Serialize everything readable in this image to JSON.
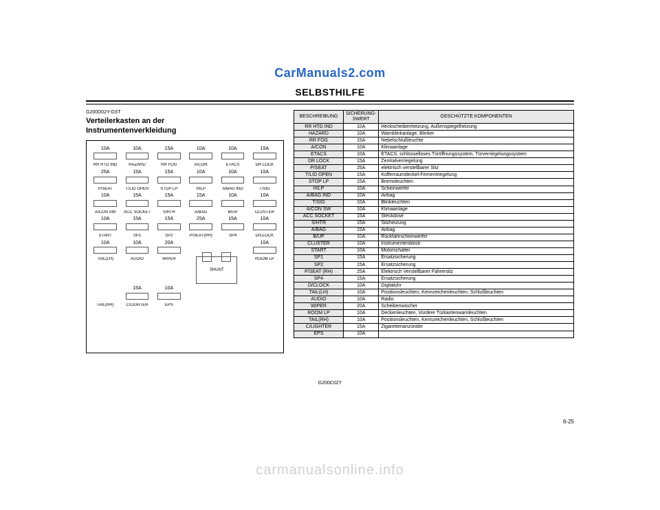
{
  "watermark_top": "CarManuals2.com",
  "watermark_bottom": "carmanualsonline.info",
  "page_title": "SELBSTHILFE",
  "left_ref": "G200D02Y-GST",
  "left_heading_1": "Verteilerkasten an der",
  "left_heading_2": "Instrumentenverkleidung",
  "footer_ref": "G200C02Y",
  "page_num": "6-25",
  "diagram": {
    "rows": [
      [
        {
          "a": "10A",
          "l": ""
        },
        {
          "a": "10A",
          "l": ""
        },
        {
          "a": "15A",
          "l": ""
        },
        {
          "a": "10A",
          "l": ""
        },
        {
          "a": "10A",
          "l": ""
        },
        {
          "a": "15A",
          "l": ""
        }
      ],
      [
        {
          "a": "",
          "l": "RR HTD IND"
        },
        {
          "a": "",
          "l": "HAZARD"
        },
        {
          "a": "",
          "l": "RR FOG"
        },
        {
          "a": "",
          "l": "A/CON"
        },
        {
          "a": "",
          "l": "ETACS"
        },
        {
          "a": "",
          "l": "DR LOCK"
        }
      ],
      [
        {
          "a": "25A",
          "l": ""
        },
        {
          "a": "15A",
          "l": ""
        },
        {
          "a": "15A",
          "l": ""
        },
        {
          "a": "10A",
          "l": ""
        },
        {
          "a": "10A",
          "l": ""
        },
        {
          "a": "10A",
          "l": ""
        }
      ],
      [
        {
          "a": "",
          "l": "P/SEAT"
        },
        {
          "a": "",
          "l": "T/LID OPEN"
        },
        {
          "a": "",
          "l": "STOP LP"
        },
        {
          "a": "",
          "l": "H/LP"
        },
        {
          "a": "",
          "l": "A/BAG IND"
        },
        {
          "a": "",
          "l": "T/SIG"
        }
      ],
      [
        {
          "a": "10A",
          "l": ""
        },
        {
          "a": "15A",
          "l": ""
        },
        {
          "a": "15A",
          "l": ""
        },
        {
          "a": "15A",
          "l": ""
        },
        {
          "a": "10A",
          "l": ""
        },
        {
          "a": "10A",
          "l": ""
        }
      ],
      [
        {
          "a": "",
          "l": "A/CON SW"
        },
        {
          "a": "",
          "l": "ACC SOCKET"
        },
        {
          "a": "",
          "l": "S/HTR"
        },
        {
          "a": "",
          "l": "A/BAG"
        },
        {
          "a": "",
          "l": "B/UP"
        },
        {
          "a": "",
          "l": "CLUSTER"
        }
      ],
      [
        {
          "a": "10A",
          "l": ""
        },
        {
          "a": "15A",
          "l": ""
        },
        {
          "a": "15A",
          "l": ""
        },
        {
          "a": "25A",
          "l": ""
        },
        {
          "a": "15A",
          "l": ""
        },
        {
          "a": "10A",
          "l": ""
        }
      ],
      [
        {
          "a": "",
          "l": "START"
        },
        {
          "a": "",
          "l": "SP1"
        },
        {
          "a": "",
          "l": "SP2"
        },
        {
          "a": "",
          "l": "P/SEAT(RH)"
        },
        {
          "a": "",
          "l": "SP4"
        },
        {
          "a": "",
          "l": "D/CLOCK"
        }
      ],
      [
        {
          "a": "10A",
          "l": ""
        },
        {
          "a": "10A",
          "l": ""
        },
        {
          "a": "20A",
          "l": ""
        },
        {
          "a": "",
          "l": ""
        },
        {
          "a": "",
          "l": ""
        },
        {
          "a": "10A",
          "l": ""
        }
      ],
      [
        {
          "a": "",
          "l": "TAIL(LH)"
        },
        {
          "a": "",
          "l": "AUDIO"
        },
        {
          "a": "",
          "l": "WIPER"
        },
        {
          "shunt": true
        },
        {
          "a": "",
          "l": "ROOM LP"
        }
      ],
      [
        {
          "a": "",
          "l": ""
        },
        {
          "a": "15A",
          "l": ""
        },
        {
          "a": "10A",
          "l": ""
        },
        {
          "a": "",
          "l": ""
        },
        {
          "a": "",
          "l": ""
        },
        {
          "a": "",
          "l": ""
        }
      ],
      [
        {
          "a": "",
          "l": "TAIL(RH)"
        },
        {
          "a": "",
          "l": "C/LIGHTER"
        },
        {
          "a": "",
          "l": "EPS"
        },
        {
          "a": "",
          "l": ""
        },
        {
          "a": "",
          "l": ""
        },
        {
          "a": "",
          "l": ""
        }
      ]
    ],
    "shunt_label": "SHUNT"
  },
  "table": {
    "headers": [
      "BESCHREIBUNG",
      "SICHERUNG-\nSWERT",
      "GESCHÜTZTE KOMPONENTEN"
    ],
    "rows": [
      [
        "RR HTD IND",
        "10A",
        "Heckscheibenheizung, Außenspiegelheizung"
      ],
      [
        "HAZARD",
        "10A",
        "Warnblinkanlage, Blinker"
      ],
      [
        "RR FOG",
        "15A",
        "Nebelschlußleuchte"
      ],
      [
        "A/CON",
        "10A",
        "Klimaanlage"
      ],
      [
        "ETACS",
        "10A",
        "ETACS, schlüsselloses Türöffnungssystem, Türverriegelungssystem"
      ],
      [
        "DR LOCK",
        "15A",
        "Zentralverriegelung"
      ],
      [
        "P/SEAT",
        "25A",
        "elektrisch verstellbarer Sitz"
      ],
      [
        "T/LID OPEN",
        "15A",
        "Kofferraumdeckel-Fernentriegelung"
      ],
      [
        "STOP LP",
        "15A",
        "Bremsleuchten"
      ],
      [
        "H/LP",
        "10A",
        "Scheinwerfer"
      ],
      [
        "A/BAG  IND",
        "10A",
        "Airbag"
      ],
      [
        "T/SIG",
        "10A",
        "Blinkleuchten"
      ],
      [
        "A/CON SW",
        "10A",
        "Klimaanlage"
      ],
      [
        "ACC SOCKET",
        "15A",
        "Steckdose"
      ],
      [
        "S/HTR",
        "15A",
        "Sitzheizung"
      ],
      [
        "A/BAG",
        "15A",
        "Airbag"
      ],
      [
        "B/UP",
        "10A",
        "Rückfahrscheinwerfer"
      ],
      [
        "CLUSTER",
        "10A",
        "Instrumentenblock"
      ],
      [
        "START",
        "10A",
        "Motorschalter"
      ],
      [
        "SP1",
        "15A",
        "Ersatzsicherung"
      ],
      [
        "SP2",
        "15A",
        "Ersatzsicherung"
      ],
      [
        "P/SEAT (RH)",
        "25A",
        "Elektrisch Verstellbarer Fahrersitz"
      ],
      [
        "SP4",
        "15A",
        "Ersatzsicherung"
      ],
      [
        "D/CLOCK",
        "10A",
        "Digitaluhr"
      ],
      [
        "TAIL(LH)",
        "10A",
        "Positionsleuchten, Kennzeichenleuchten, Schlußleuchten"
      ],
      [
        "AUDIO",
        "10A",
        "Radio"
      ],
      [
        "WIPER",
        "20A",
        "Scheibenwischer"
      ],
      [
        "ROOM LP",
        "10A",
        "Deckenleuchten, Vordere Türkantenwarnleuchten"
      ],
      [
        "TAIL(RH)",
        "10A",
        "Positionsleuchten, Kennzeichenleuchten, Schlußleuchten"
      ],
      [
        "C/LIGHTER",
        "15A",
        "Zigarettenanzünder"
      ],
      [
        "EPS",
        "10A",
        ""
      ]
    ]
  }
}
